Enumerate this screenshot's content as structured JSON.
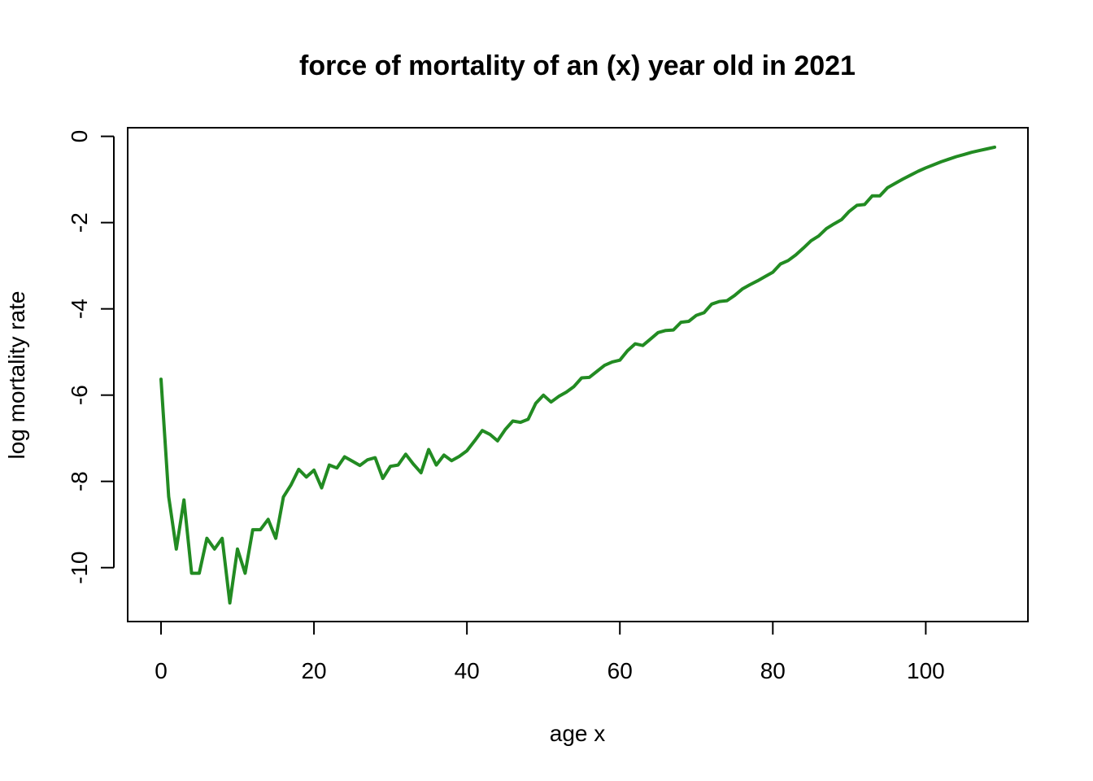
{
  "chart_data": {
    "type": "line",
    "title": "force of mortality of an (x) year old in 2021",
    "xlabel": "age x",
    "ylabel": "log mortality rate",
    "xlim": [
      -4.36,
      113.36
    ],
    "ylim": [
      -11.25,
      0.2
    ],
    "xticks": [
      0,
      20,
      40,
      60,
      80,
      100
    ],
    "xtick_labels": [
      "0",
      "20",
      "40",
      "60",
      "80",
      "100"
    ],
    "yticks": [
      0,
      -2,
      -4,
      -6,
      -8,
      -10
    ],
    "ytick_labels": [
      "0",
      "-2",
      "-4",
      "-6",
      "-8",
      "-10"
    ],
    "grid": false,
    "legend": "none",
    "line_color": "#228B22",
    "series": [
      {
        "x": [
          0,
          1,
          2,
          3,
          4,
          5,
          6,
          7,
          8,
          9,
          10,
          11,
          12,
          13,
          14,
          15,
          16,
          17,
          18,
          19,
          20,
          21,
          22,
          23,
          24,
          25,
          26,
          27,
          28,
          29,
          30,
          31,
          32,
          33,
          34,
          35,
          36,
          37,
          38,
          39,
          40,
          41,
          42,
          43,
          44,
          45,
          46,
          47,
          48,
          49,
          50,
          51,
          52,
          53,
          54,
          55,
          56,
          57,
          58,
          59,
          60,
          61,
          62,
          63,
          64,
          65,
          66,
          67,
          68,
          69,
          70,
          71,
          72,
          73,
          74,
          75,
          76,
          77,
          78,
          79,
          80,
          81,
          82,
          83,
          84,
          85,
          86,
          87,
          88,
          89,
          90,
          91,
          92,
          93,
          94,
          95,
          96,
          97,
          98,
          99,
          100,
          101,
          102,
          103,
          104,
          105,
          106,
          107,
          108,
          109
        ],
        "y": [
          -5.63,
          -8.35,
          -9.57,
          -8.43,
          -10.13,
          -10.13,
          -9.32,
          -9.57,
          -9.32,
          -10.82,
          -9.57,
          -10.13,
          -9.12,
          -9.12,
          -8.88,
          -9.32,
          -8.36,
          -8.08,
          -7.72,
          -7.9,
          -7.74,
          -8.15,
          -7.62,
          -7.69,
          -7.43,
          -7.53,
          -7.63,
          -7.5,
          -7.45,
          -7.93,
          -7.65,
          -7.62,
          -7.37,
          -7.6,
          -7.8,
          -7.26,
          -7.62,
          -7.39,
          -7.52,
          -7.42,
          -7.29,
          -7.06,
          -6.82,
          -6.91,
          -7.06,
          -6.8,
          -6.6,
          -6.63,
          -6.56,
          -6.19,
          -6.0,
          -6.16,
          -6.03,
          -5.93,
          -5.8,
          -5.6,
          -5.59,
          -5.45,
          -5.31,
          -5.23,
          -5.19,
          -4.97,
          -4.81,
          -4.85,
          -4.7,
          -4.55,
          -4.5,
          -4.49,
          -4.31,
          -4.29,
          -4.15,
          -4.09,
          -3.89,
          -3.83,
          -3.81,
          -3.69,
          -3.54,
          -3.44,
          -3.35,
          -3.25,
          -3.15,
          -2.96,
          -2.88,
          -2.75,
          -2.59,
          -2.42,
          -2.31,
          -2.14,
          -2.03,
          -1.93,
          -1.74,
          -1.6,
          -1.58,
          -1.38,
          -1.38,
          -1.19,
          -1.09,
          -0.99,
          -0.9,
          -0.81,
          -0.73,
          -0.66,
          -0.59,
          -0.53,
          -0.47,
          -0.42,
          -0.37,
          -0.33,
          -0.29,
          -0.25
        ]
      }
    ]
  }
}
